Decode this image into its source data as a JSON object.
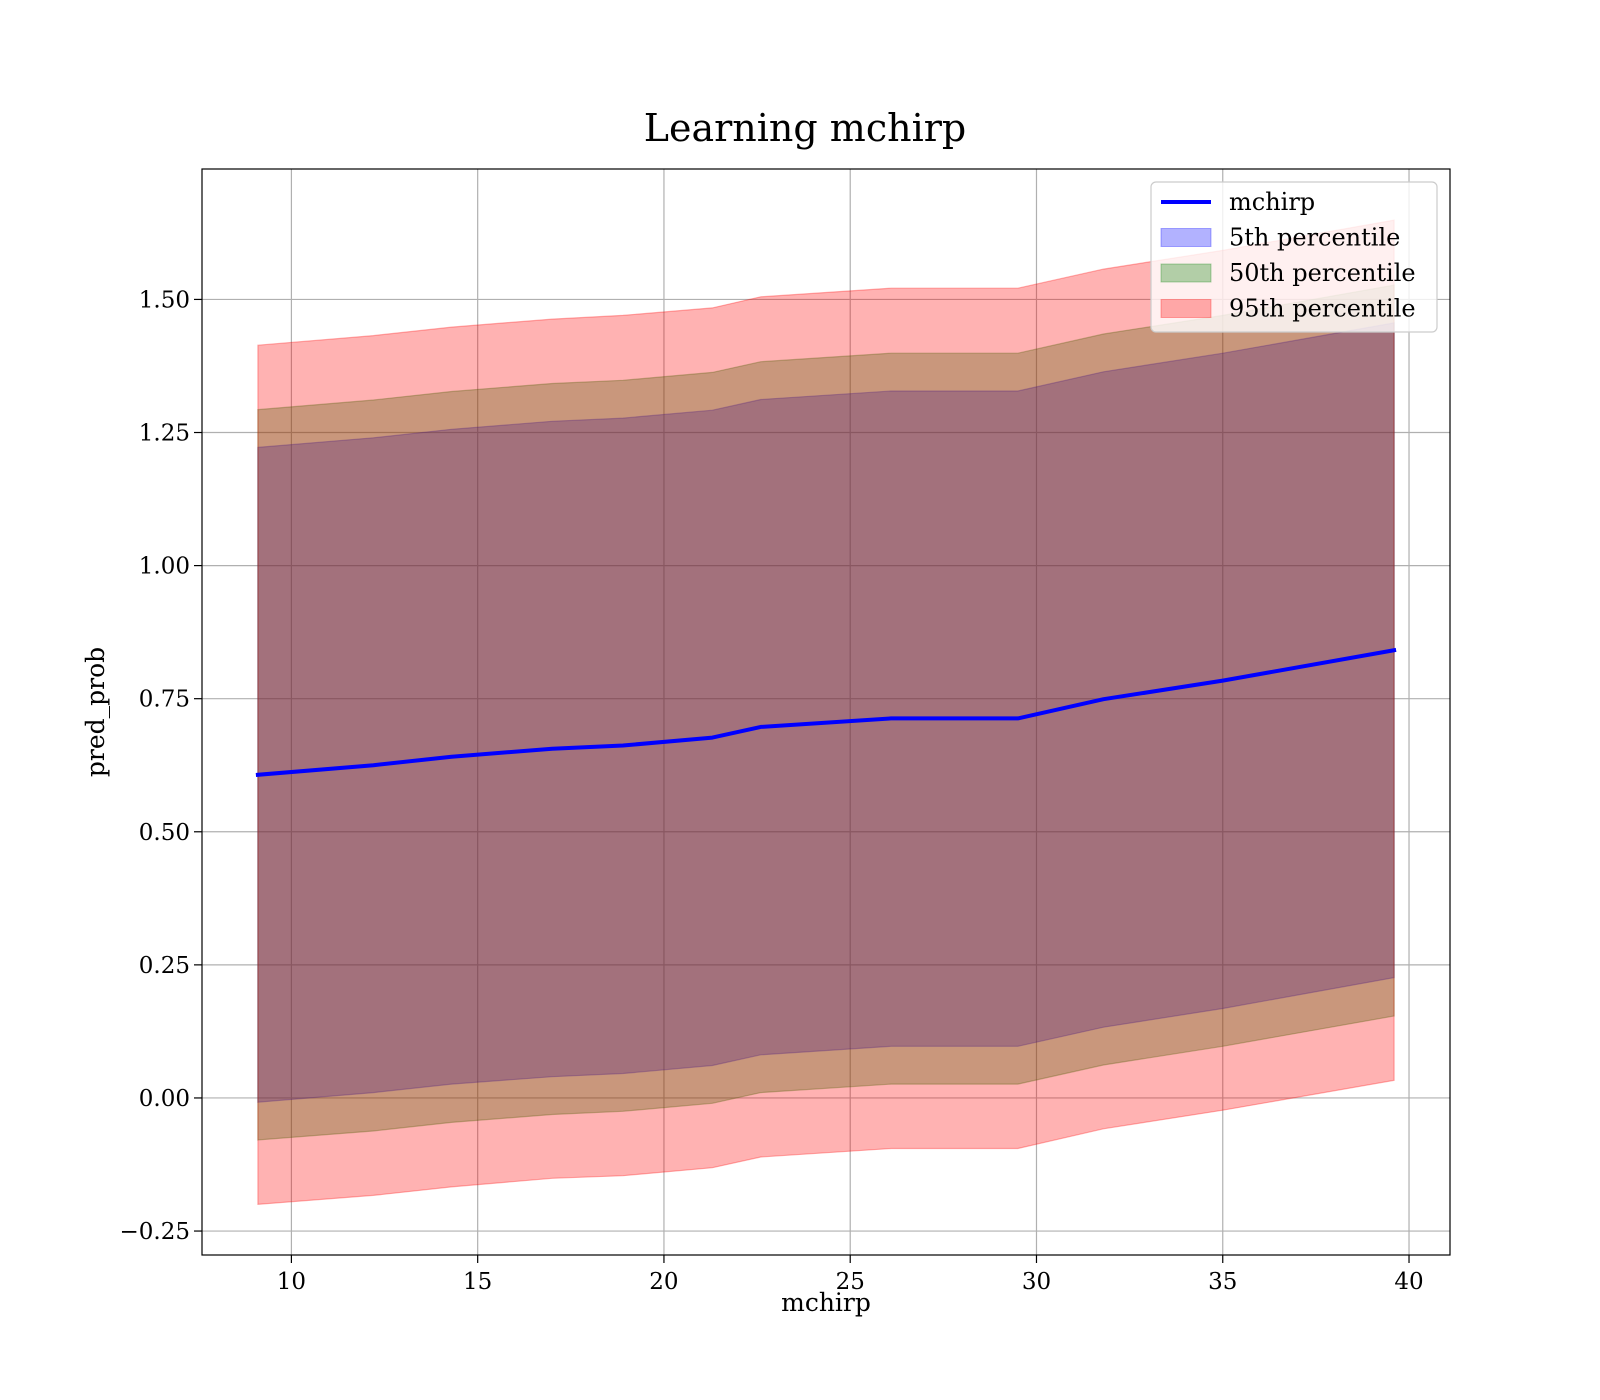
{
  "chart_data": {
    "type": "line",
    "title": "Learning mchirp",
    "xlabel": "mchirp",
    "ylabel": "pred_prob",
    "xlim": [
      7.6,
      41.1
    ],
    "ylim": [
      -0.295,
      1.745
    ],
    "xticks": [
      10,
      15,
      20,
      25,
      30,
      35,
      40
    ],
    "xtick_labels": [
      "10",
      "15",
      "20",
      "25",
      "30",
      "35",
      "40"
    ],
    "yticks": [
      -0.25,
      0.0,
      0.25,
      0.5,
      0.75,
      1.0,
      1.25,
      1.5
    ],
    "ytick_labels": [
      "−0.25",
      "0.00",
      "0.25",
      "0.50",
      "0.75",
      "1.00",
      "1.25",
      "1.50"
    ],
    "grid": true,
    "legend_position": "top-right",
    "x": [
      9.1,
      12.2,
      14.3,
      17.0,
      18.9,
      21.3,
      22.6,
      26.1,
      29.5,
      31.8,
      35.0,
      39.6
    ],
    "series": [
      {
        "name": "mchirp",
        "kind": "line",
        "color": "#0000ff",
        "values": [
          0.607,
          0.625,
          0.641,
          0.656,
          0.662,
          0.677,
          0.697,
          0.713,
          0.713,
          0.749,
          0.784,
          0.841
        ]
      },
      {
        "name": "5th percentile",
        "kind": "band",
        "color": "#0000ff",
        "lower": [
          -0.008,
          0.01,
          0.026,
          0.04,
          0.046,
          0.061,
          0.081,
          0.097,
          0.097,
          0.133,
          0.168,
          0.226
        ],
        "upper": [
          1.222,
          1.24,
          1.256,
          1.271,
          1.277,
          1.292,
          1.312,
          1.328,
          1.328,
          1.364,
          1.399,
          1.456
        ]
      },
      {
        "name": "50th percentile",
        "kind": "band",
        "color": "#008000",
        "lower": [
          -0.079,
          -0.062,
          -0.046,
          -0.031,
          -0.025,
          -0.01,
          0.01,
          0.026,
          0.026,
          0.062,
          0.097,
          0.154
        ],
        "upper": [
          1.293,
          1.311,
          1.327,
          1.342,
          1.348,
          1.363,
          1.383,
          1.399,
          1.399,
          1.435,
          1.47,
          1.527
        ]
      },
      {
        "name": "95th percentile",
        "kind": "band",
        "color": "#ff0000",
        "lower": [
          -0.2,
          -0.183,
          -0.167,
          -0.151,
          -0.146,
          -0.131,
          -0.111,
          -0.095,
          -0.095,
          -0.058,
          -0.023,
          0.033
        ],
        "upper": [
          1.414,
          1.432,
          1.448,
          1.463,
          1.47,
          1.484,
          1.505,
          1.521,
          1.521,
          1.557,
          1.592,
          1.649
        ]
      }
    ]
  }
}
